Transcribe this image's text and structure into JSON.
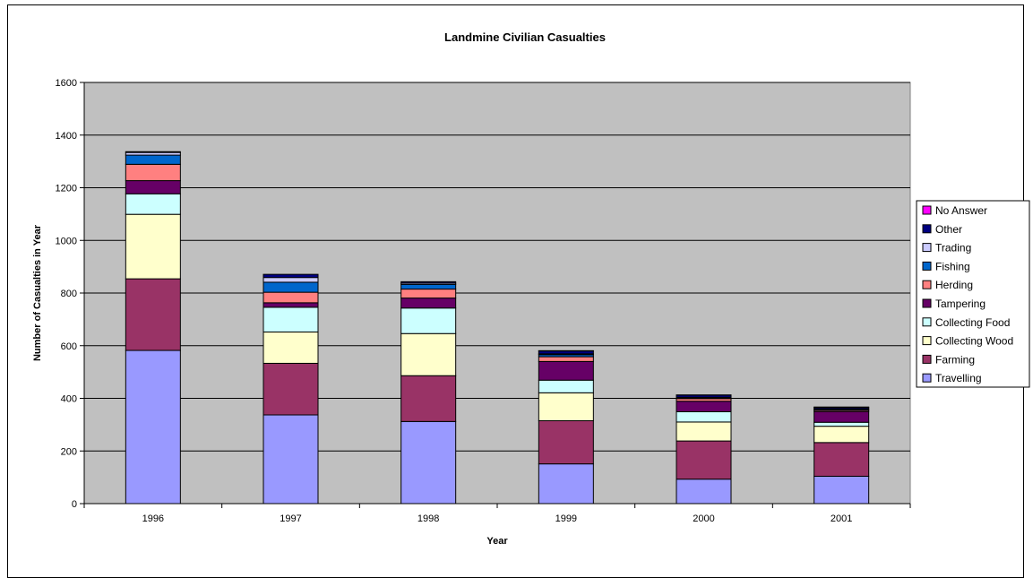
{
  "chart_data": {
    "type": "bar",
    "stacked": true,
    "title": "Landmine Civilian Casualties",
    "xlabel": "Year",
    "ylabel": "Number of Casualties in Year",
    "ylim": [
      0,
      1600
    ],
    "yticks": [
      0,
      200,
      400,
      600,
      800,
      1000,
      1200,
      1400,
      1600
    ],
    "grid": true,
    "legend_position": "right",
    "categories": [
      "1996",
      "1997",
      "1998",
      "1999",
      "2000",
      "2001"
    ],
    "series": [
      {
        "name": "Travelling",
        "color": "#9999ff",
        "values": [
          582,
          337,
          312,
          151,
          93,
          104
        ]
      },
      {
        "name": "Farming",
        "color": "#993366",
        "values": [
          272,
          196,
          174,
          164,
          145,
          128
        ]
      },
      {
        "name": "Collecting Wood",
        "color": "#ffffcc",
        "values": [
          245,
          119,
          160,
          106,
          72,
          62
        ]
      },
      {
        "name": "Collecting Food",
        "color": "#ccffff",
        "values": [
          78,
          94,
          97,
          48,
          39,
          15
        ]
      },
      {
        "name": "Tampering",
        "color": "#660066",
        "values": [
          50,
          17,
          38,
          71,
          40,
          41
        ]
      },
      {
        "name": "Herding",
        "color": "#ff8080",
        "values": [
          62,
          40,
          34,
          18,
          10,
          5
        ]
      },
      {
        "name": "Fishing",
        "color": "#0066cc",
        "values": [
          35,
          38,
          18,
          8,
          3,
          4
        ]
      },
      {
        "name": "Trading",
        "color": "#ccccff",
        "values": [
          10,
          18,
          5,
          3,
          2,
          2
        ]
      },
      {
        "name": "Other",
        "color": "#000080",
        "values": [
          3,
          12,
          5,
          11,
          8,
          5
        ]
      },
      {
        "name": "No Answer",
        "color": "#ff00ff",
        "values": [
          0,
          0,
          0,
          1,
          1,
          1
        ]
      }
    ]
  },
  "colors": {
    "plot_background": "#c0c0c0",
    "gridline": "#000000"
  }
}
